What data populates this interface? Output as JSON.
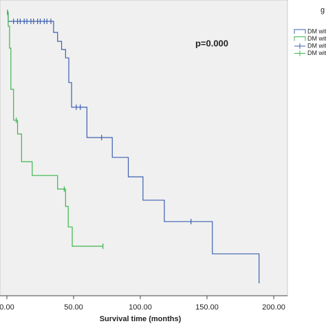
{
  "chart_data": {
    "type": "step",
    "xlabel": "Survival time (months)",
    "annotation": "p=0.000",
    "xlim": [
      0,
      210
    ],
    "ylim": [
      0,
      1
    ],
    "xticks": [
      {
        "value": 0,
        "label": "0.00"
      },
      {
        "value": 50,
        "label": "50.00"
      },
      {
        "value": 100,
        "label": "100.00"
      },
      {
        "value": 150,
        "label": "150.00"
      },
      {
        "value": 200,
        "label": "200.00"
      }
    ],
    "legend_title": "g",
    "series": [
      {
        "name": "DM with",
        "kind": "line",
        "color": "#3b5fb0",
        "x": [
          0,
          1,
          35,
          38,
          41,
          44,
          46.4,
          48.5,
          60,
          79,
          91,
          102,
          118,
          154,
          189
        ],
        "values": [
          1,
          0.967,
          0.926,
          0.893,
          0.863,
          0.832,
          0.741,
          0.65,
          0.538,
          0.465,
          0.393,
          0.307,
          0.228,
          0.109,
          0
        ]
      },
      {
        "name": "DM with",
        "kind": "line",
        "color": "#3cb54a",
        "x": [
          0,
          1,
          2,
          3,
          5,
          8,
          11,
          19,
          38,
          44,
          46,
          49,
          72
        ],
        "values": [
          1,
          0.949,
          0.868,
          0.716,
          0.602,
          0.551,
          0.449,
          0.398,
          0.348,
          0.284,
          0.208,
          0.137,
          0.137
        ]
      },
      {
        "name": "DM with",
        "kind": "censor",
        "color": "#3b5fb0",
        "x": [
          0.5,
          5,
          8,
          10,
          13,
          15,
          18,
          20,
          23,
          25,
          28,
          30,
          33,
          52,
          55,
          71,
          138
        ],
        "values": [
          1,
          0.967,
          0.967,
          0.967,
          0.967,
          0.967,
          0.967,
          0.967,
          0.967,
          0.967,
          0.967,
          0.967,
          0.967,
          0.65,
          0.65,
          0.538,
          0.228
        ]
      },
      {
        "name": "DM with",
        "kind": "censor",
        "color": "#3cb54a",
        "x": [
          0.5,
          7,
          43,
          72
        ],
        "values": [
          1,
          0.602,
          0.348,
          0.137
        ]
      }
    ]
  }
}
